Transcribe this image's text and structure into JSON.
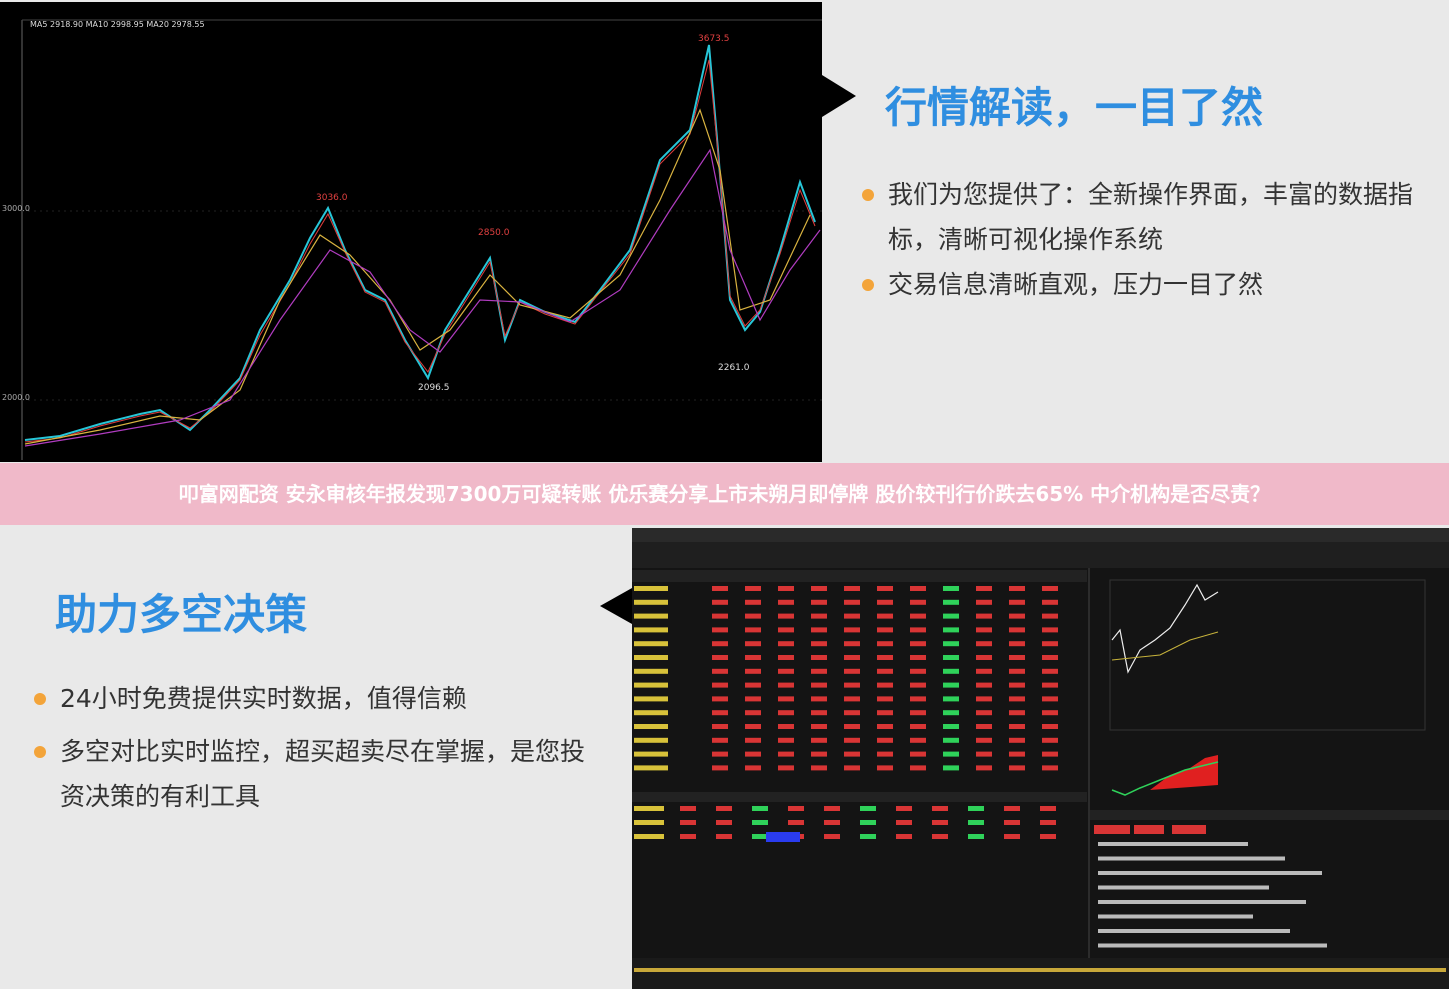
{
  "top": {
    "chart": {
      "legend": "MA5 2918.90  MA10 2998.95  MA20 2978.55",
      "high_label": "3673.5",
      "peak1_label": "3036.0",
      "peak2_label": "2850.0",
      "low1_label": "2096.5",
      "low2_label": "2261.0",
      "axis_labels": [
        "3000.0",
        "2000.0"
      ]
    },
    "title": "行情解读，一目了然",
    "bullets": [
      "我们为您提供了：全新操作界面，丰富的数据指标，清晰可视化操作系统",
      "交易信息清晰直观，压力一目了然"
    ]
  },
  "banner": "叩富网配资 安永审核年报发现7300万可疑转账 优乐赛分享上市未朔月即停牌 股价较刊行价跌去65% 中介机构是否尽责？",
  "bottom": {
    "title": "助力多空决策",
    "bullets": [
      "24小时免费提供实时数据，值得信赖",
      "多空对比实时监控，超买超卖尽在掌握，是您投资决策的有利工具"
    ]
  }
}
